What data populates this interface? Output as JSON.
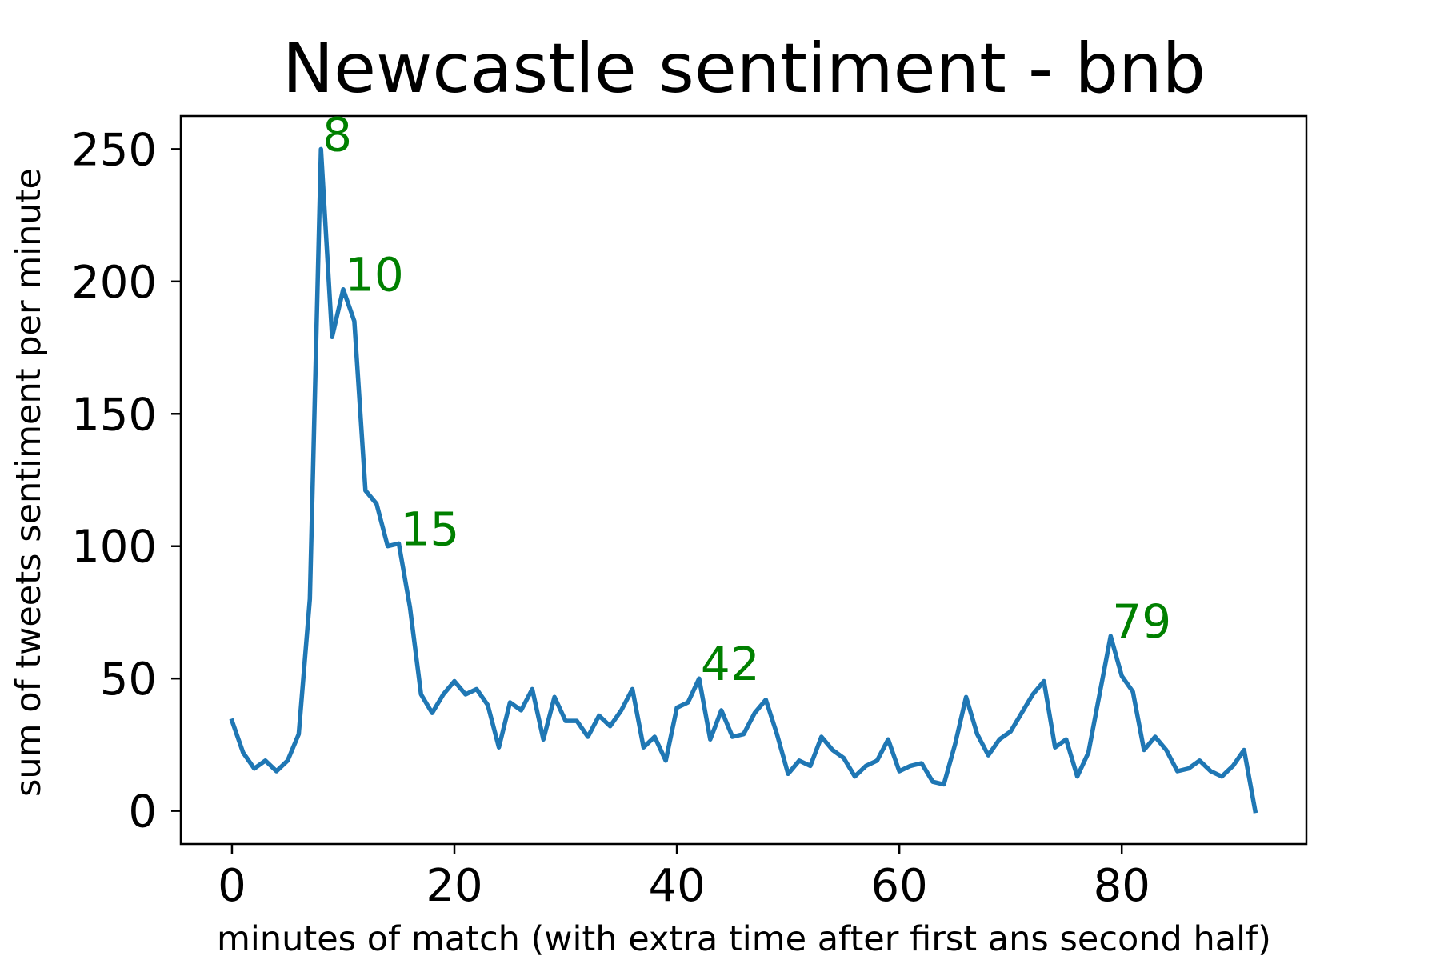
{
  "chart_data": {
    "type": "line",
    "title": "Newcastle sentiment - bnb",
    "xlabel": "minutes of match (with extra time after first ans second half)",
    "ylabel": "sum of tweets sentiment per minute",
    "xlim": [
      -4.6,
      96.6
    ],
    "ylim": [
      -12.5,
      262.5
    ],
    "x_ticks": [
      0,
      20,
      40,
      60,
      80
    ],
    "y_ticks": [
      0,
      50,
      100,
      150,
      200,
      250
    ],
    "x_tick_labels": [
      "0",
      "20",
      "40",
      "60",
      "80"
    ],
    "y_tick_labels": [
      "0",
      "50",
      "100",
      "150",
      "200",
      "250"
    ],
    "grid": false,
    "line_color": "#1f77b4",
    "annotation_color": "#008000",
    "series": [
      {
        "x": [
          0,
          1,
          2,
          3,
          4,
          5,
          6,
          7,
          8,
          9,
          10,
          11,
          12,
          13,
          14,
          15,
          16,
          17,
          18,
          19,
          20,
          21,
          22,
          23,
          24,
          25,
          26,
          27,
          28,
          29,
          30,
          31,
          32,
          33,
          34,
          35,
          36,
          37,
          38,
          39,
          40,
          41,
          42,
          43,
          44,
          45,
          46,
          47,
          48,
          49,
          50,
          51,
          52,
          53,
          54,
          55,
          56,
          57,
          58,
          59,
          60,
          61,
          62,
          63,
          64,
          65,
          66,
          67,
          68,
          69,
          70,
          71,
          72,
          73,
          74,
          75,
          76,
          77,
          78,
          79,
          80,
          81,
          82,
          83,
          84,
          85,
          86,
          87,
          88,
          89,
          90,
          91,
          92
        ],
        "values": [
          34,
          22,
          16,
          19,
          15,
          19,
          29,
          80,
          250,
          179,
          197,
          185,
          121,
          116,
          100,
          101,
          77,
          44,
          37,
          44,
          49,
          44,
          46,
          40,
          24,
          41,
          38,
          46,
          27,
          43,
          34,
          34,
          28,
          36,
          32,
          38,
          46,
          24,
          28,
          19,
          39,
          41,
          50,
          27,
          38,
          28,
          29,
          37,
          42,
          29,
          14,
          19,
          17,
          28,
          23,
          20,
          13,
          17,
          19,
          27,
          15,
          17,
          18,
          11,
          10,
          25,
          43,
          29,
          21,
          27,
          30,
          37,
          44,
          49,
          24,
          27,
          13,
          22,
          44,
          66,
          51,
          45,
          23,
          28,
          23,
          15,
          16,
          19,
          15,
          13,
          17,
          23,
          0
        ]
      }
    ],
    "annotations": [
      {
        "text": "8",
        "x": 8,
        "y": 250
      },
      {
        "text": "10",
        "x": 10,
        "y": 197
      },
      {
        "text": "15",
        "x": 15,
        "y": 101
      },
      {
        "text": "42",
        "x": 42,
        "y": 50
      },
      {
        "text": "79",
        "x": 79,
        "y": 66
      }
    ]
  }
}
